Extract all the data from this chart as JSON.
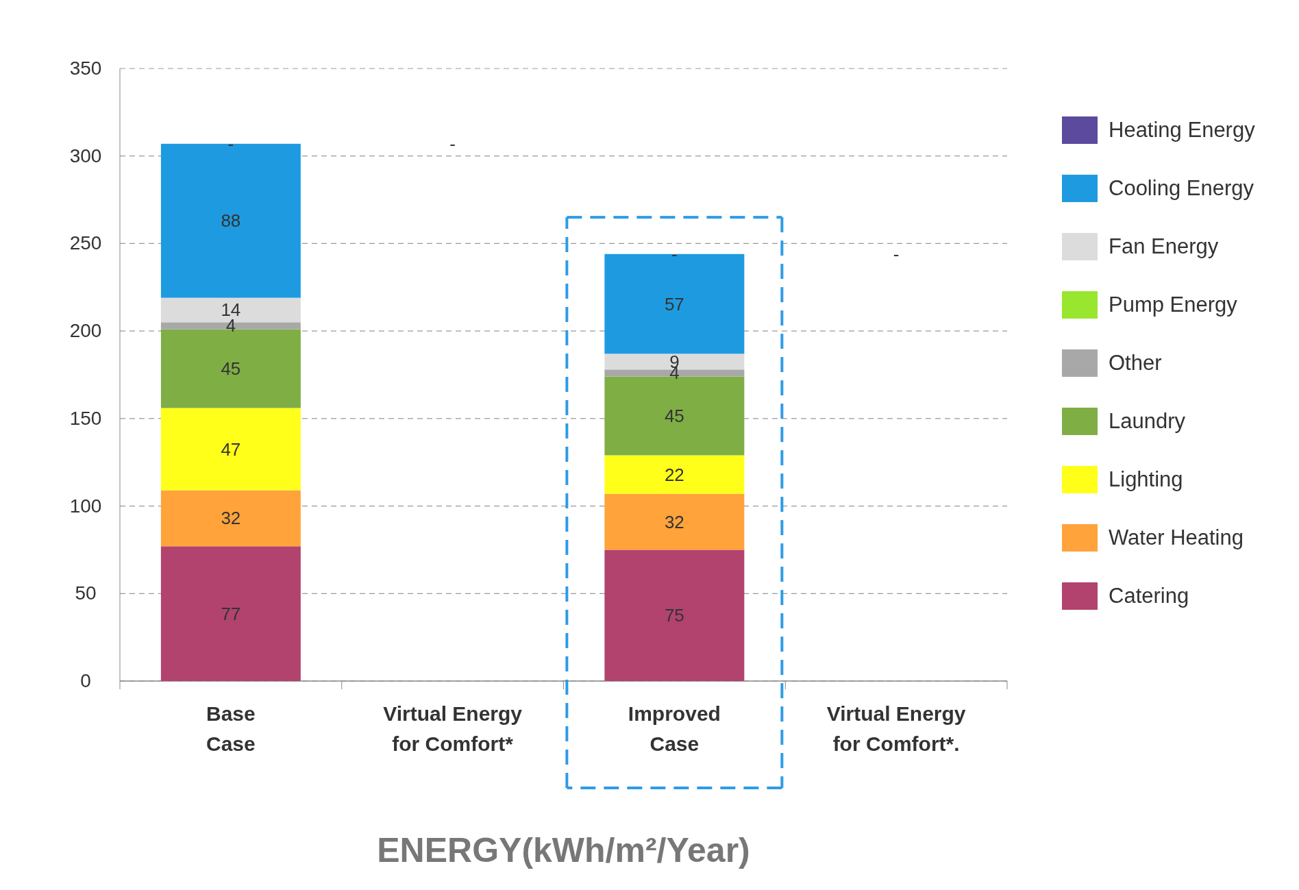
{
  "chart_data": {
    "type": "bar",
    "stacked": true,
    "xlabel": "ENERGY(kWh/m²/Year)",
    "categories": [
      "Base Case",
      "Virtual Energy for Comfort*",
      "Improved Case",
      "Virtual Energy for Comfort*."
    ],
    "ylim": [
      0,
      350
    ],
    "yticks": [
      0,
      50,
      100,
      150,
      200,
      250,
      300,
      350
    ],
    "grid": "y",
    "legend": "right",
    "series": [
      {
        "name": "Catering",
        "color": "#b2426e",
        "values": [
          77,
          null,
          75,
          null
        ]
      },
      {
        "name": "Water Heating",
        "color": "#ffa33a",
        "values": [
          32,
          null,
          32,
          null
        ]
      },
      {
        "name": "Lighting",
        "color": "#ffff1a",
        "values": [
          47,
          null,
          22,
          null
        ]
      },
      {
        "name": "Laundry",
        "color": "#7fae45",
        "values": [
          45,
          null,
          45,
          null
        ]
      },
      {
        "name": "Other",
        "color": "#a8a8a8",
        "values": [
          4,
          null,
          4,
          null
        ]
      },
      {
        "name": "Pump Energy",
        "color": "#99e62e",
        "values": [
          null,
          null,
          null,
          null
        ]
      },
      {
        "name": "Fan Energy",
        "color": "#dcdcdc",
        "values": [
          14,
          null,
          9,
          null
        ]
      },
      {
        "name": "Cooling Energy",
        "color": "#1e9be0",
        "values": [
          88,
          null,
          57,
          null
        ]
      },
      {
        "name": "Heating Energy",
        "color": "#5b4a9e",
        "values": [
          0,
          null,
          0,
          null
        ],
        "value_labels": [
          "-",
          null,
          "-",
          null
        ]
      }
    ],
    "data_labels": true,
    "annotations": [
      "-",
      "-"
    ]
  }
}
